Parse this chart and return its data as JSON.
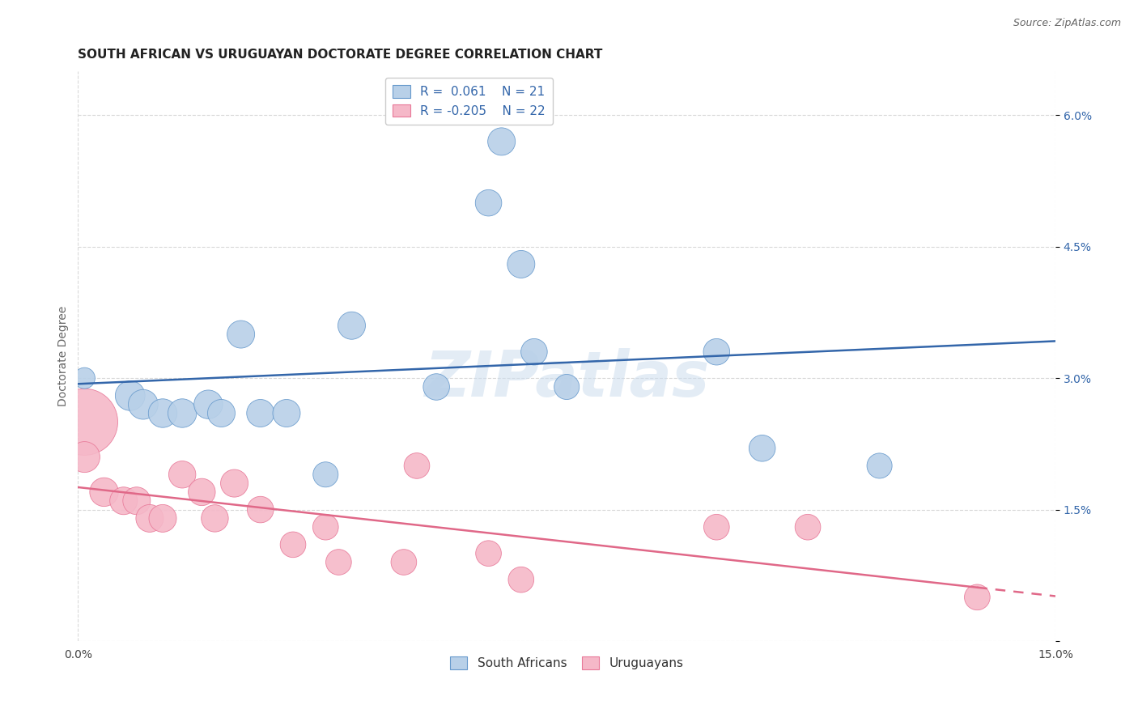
{
  "title": "SOUTH AFRICAN VS URUGUAYAN DOCTORATE DEGREE CORRELATION CHART",
  "source": "Source: ZipAtlas.com",
  "ylabel": "Doctorate Degree",
  "xlim": [
    0.0,
    0.15
  ],
  "ylim": [
    0.0,
    0.065
  ],
  "yticks": [
    0.0,
    0.015,
    0.03,
    0.045,
    0.06
  ],
  "xtick_positions": [
    0.0,
    0.025,
    0.05,
    0.075,
    0.1,
    0.125,
    0.15
  ],
  "xtick_labels": [
    "0.0%",
    "",
    "",
    "",
    "",
    "",
    "15.0%"
  ],
  "ytick_labels": [
    "",
    "1.5%",
    "3.0%",
    "4.5%",
    "6.0%"
  ],
  "background_color": "#ffffff",
  "grid_color": "#d8d8d8",
  "blue_fill": "#b8d0e8",
  "blue_edge": "#6699cc",
  "blue_line": "#3366aa",
  "pink_fill": "#f5b8c8",
  "pink_edge": "#e87898",
  "pink_line": "#e06888",
  "legend_R_blue": "0.061",
  "legend_N_blue": "21",
  "legend_R_pink": "-0.205",
  "legend_N_pink": "22",
  "sa_x": [
    0.001,
    0.008,
    0.01,
    0.013,
    0.016,
    0.02,
    0.022,
    0.025,
    0.028,
    0.032,
    0.038,
    0.042,
    0.055,
    0.063,
    0.065,
    0.068,
    0.07,
    0.075,
    0.098,
    0.105,
    0.123
  ],
  "sa_y": [
    0.03,
    0.028,
    0.027,
    0.026,
    0.026,
    0.027,
    0.026,
    0.035,
    0.026,
    0.026,
    0.019,
    0.036,
    0.029,
    0.05,
    0.057,
    0.043,
    0.033,
    0.029,
    0.033,
    0.022,
    0.02
  ],
  "sa_size": [
    35,
    70,
    70,
    65,
    65,
    65,
    60,
    60,
    60,
    60,
    50,
    60,
    55,
    55,
    60,
    60,
    55,
    50,
    55,
    55,
    50
  ],
  "uy_x": [
    0.001,
    0.001,
    0.004,
    0.007,
    0.009,
    0.011,
    0.013,
    0.016,
    0.019,
    0.021,
    0.024,
    0.028,
    0.033,
    0.038,
    0.04,
    0.05,
    0.052,
    0.063,
    0.068,
    0.098,
    0.112,
    0.138
  ],
  "uy_y": [
    0.025,
    0.021,
    0.017,
    0.016,
    0.016,
    0.014,
    0.014,
    0.019,
    0.017,
    0.014,
    0.018,
    0.015,
    0.011,
    0.013,
    0.009,
    0.009,
    0.02,
    0.01,
    0.007,
    0.013,
    0.013,
    0.005
  ],
  "uy_size": [
    350,
    75,
    65,
    60,
    60,
    60,
    60,
    58,
    58,
    58,
    60,
    55,
    52,
    52,
    52,
    52,
    52,
    52,
    52,
    52,
    52,
    52
  ]
}
